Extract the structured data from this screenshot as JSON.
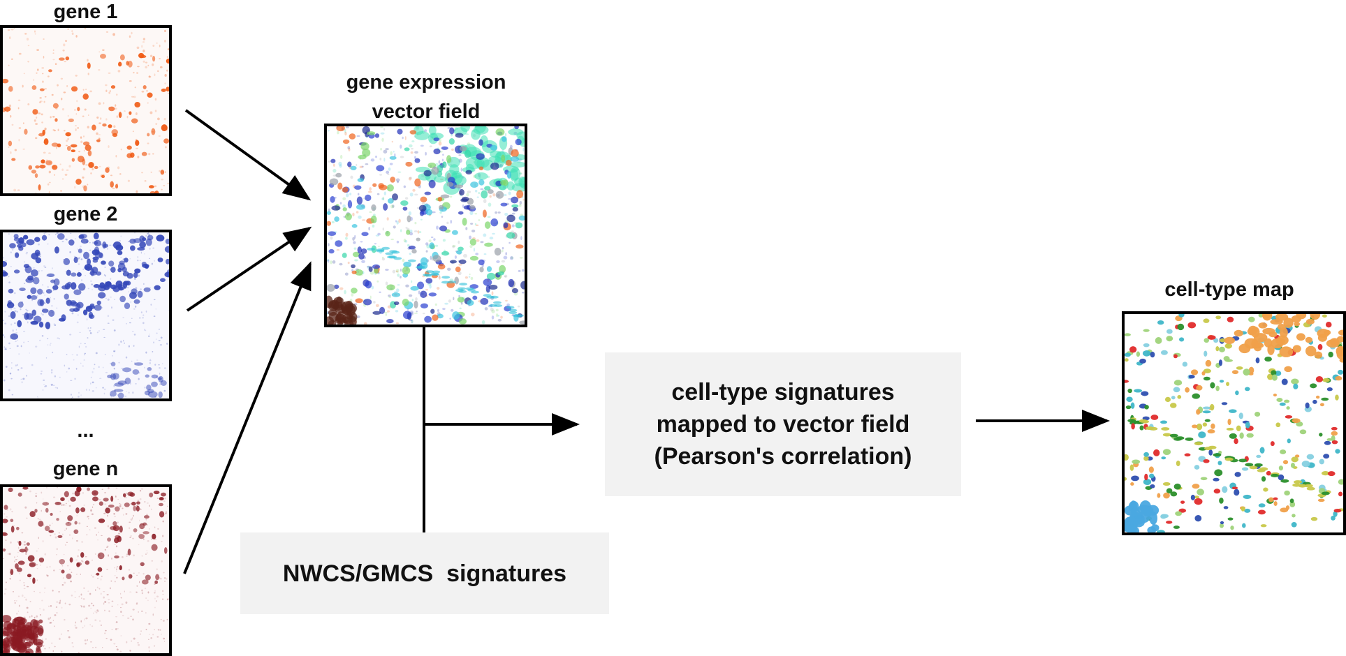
{
  "inputs": {
    "gene1_label": "gene 1",
    "gene2_label": "gene 2",
    "ellipsis": "...",
    "genen_label": "gene n"
  },
  "vector_field": {
    "title_line1": "gene expression",
    "title_line2": "vector field"
  },
  "signatures_box": {
    "text": "NWCS/GMCS  signatures"
  },
  "mapping_box": {
    "line1": "cell-type signatures",
    "line2": "mapped to vector field",
    "line3": "(Pearson's correlation)"
  },
  "output": {
    "title": "cell-type map"
  },
  "colors": {
    "gene1": "#f05a14",
    "gene2": "#3346b8",
    "genen": "#8a1a22",
    "box_fill": "#f2f2f2",
    "line": "#000000"
  }
}
